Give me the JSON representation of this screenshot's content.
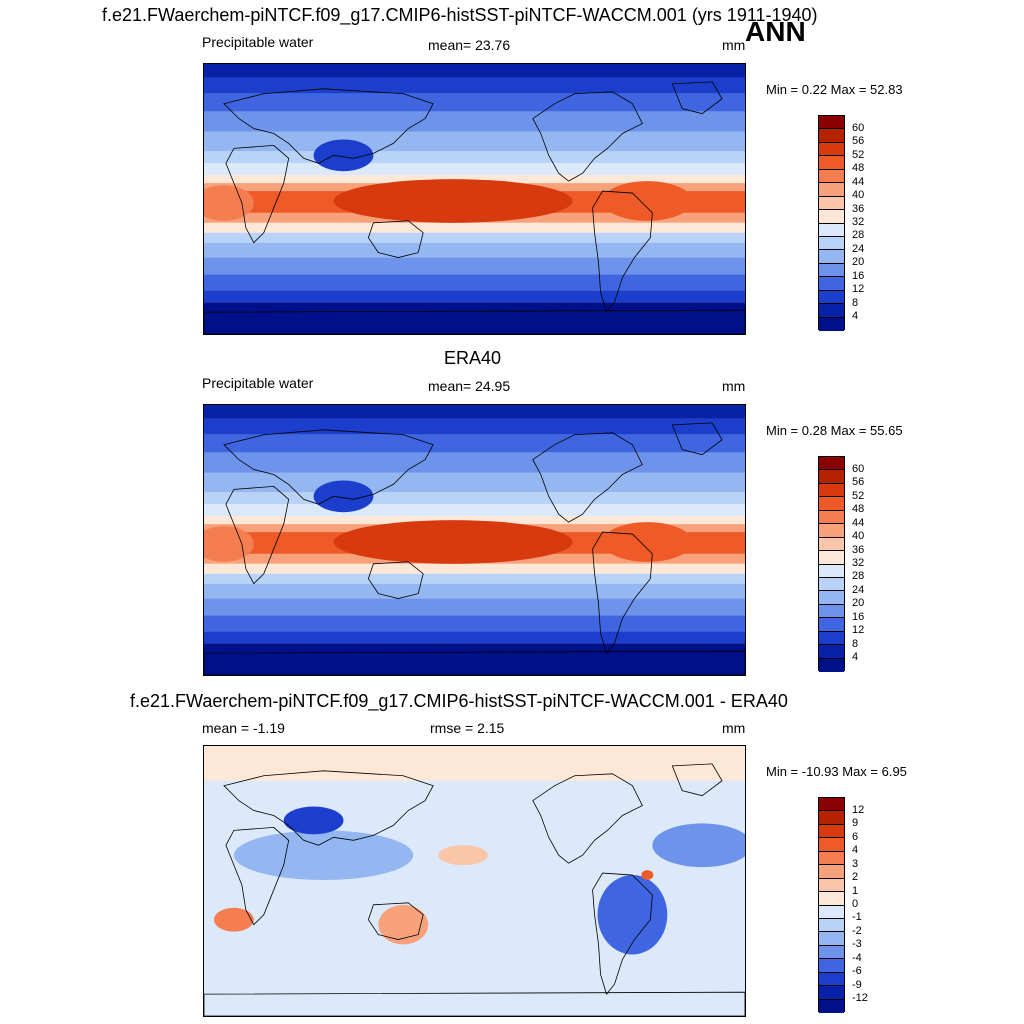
{
  "panels": [
    {
      "title": "f.e21.FWaerchem-piNTCF.f09_g17.CMIP6-histSST-piNTCF-WACCM.001 (yrs 1911-1940)",
      "ann": "ANN",
      "left_label": "Precipitable water",
      "center_label": "mean=  23.76",
      "units": "mm",
      "minmax": "Min =   0.22 Max =  52.83",
      "palette": "abs"
    },
    {
      "title": "ERA40",
      "left_label": "Precipitable water",
      "center_label": "mean=  24.95",
      "units": "mm",
      "minmax": "Min =   0.28 Max =  55.65",
      "palette": "abs"
    },
    {
      "title": "f.e21.FWaerchem-piNTCF.f09_g17.CMIP6-histSST-piNTCF-WACCM.001 - ERA40",
      "left_label": "mean =  -1.19",
      "center_label": "rmse =   2.15",
      "units": "mm",
      "minmax": "Min = -10.93 Max =   6.95",
      "palette": "diff"
    }
  ],
  "chart_data": [
    {
      "type": "heatmap",
      "title": "f.e21.FWaerchem-piNTCF.f09_g17.CMIP6-histSST-piNTCF-WACCM.001 (yrs 1911-1940)",
      "variable": "Precipitable water",
      "units": "mm",
      "mean": 23.76,
      "min": 0.22,
      "max": 52.83,
      "colorbar_levels": [
        60,
        56,
        52,
        48,
        44,
        40,
        36,
        32,
        28,
        24,
        20,
        16,
        12,
        8,
        4
      ]
    },
    {
      "type": "heatmap",
      "title": "ERA40",
      "variable": "Precipitable water",
      "units": "mm",
      "mean": 24.95,
      "min": 0.28,
      "max": 55.65,
      "colorbar_levels": [
        60,
        56,
        52,
        48,
        44,
        40,
        36,
        32,
        28,
        24,
        20,
        16,
        12,
        8,
        4
      ]
    },
    {
      "type": "heatmap",
      "title": "f.e21.FWaerchem-piNTCF.f09_g17.CMIP6-histSST-piNTCF-WACCM.001 - ERA40",
      "units": "mm",
      "mean": -1.19,
      "rmse": 2.15,
      "min": -10.93,
      "max": 6.95,
      "colorbar_levels": [
        12,
        9,
        6,
        4,
        3,
        2,
        1,
        0,
        -1,
        -2,
        -3,
        -4,
        -6,
        -9,
        -12
      ]
    }
  ],
  "palettes": {
    "abs": [
      "#8b0000",
      "#b42200",
      "#d83a10",
      "#ee5a28",
      "#f47e50",
      "#f8a27c",
      "#fbc6a8",
      "#fde8d8",
      "#dbe9fb",
      "#b9d2f7",
      "#94b6f1",
      "#6d94ea",
      "#3f66e0",
      "#1b3fcc",
      "#0722a8",
      "#00108a"
    ],
    "diff": [
      "#8b0000",
      "#b42200",
      "#d83a10",
      "#ee5a28",
      "#f47e50",
      "#f8a27c",
      "#fbc6a8",
      "#fde8d8",
      "#dbe9fb",
      "#b9d2f7",
      "#94b6f1",
      "#6d94ea",
      "#3f66e0",
      "#1b3fcc",
      "#0722a8",
      "#00108a"
    ]
  }
}
